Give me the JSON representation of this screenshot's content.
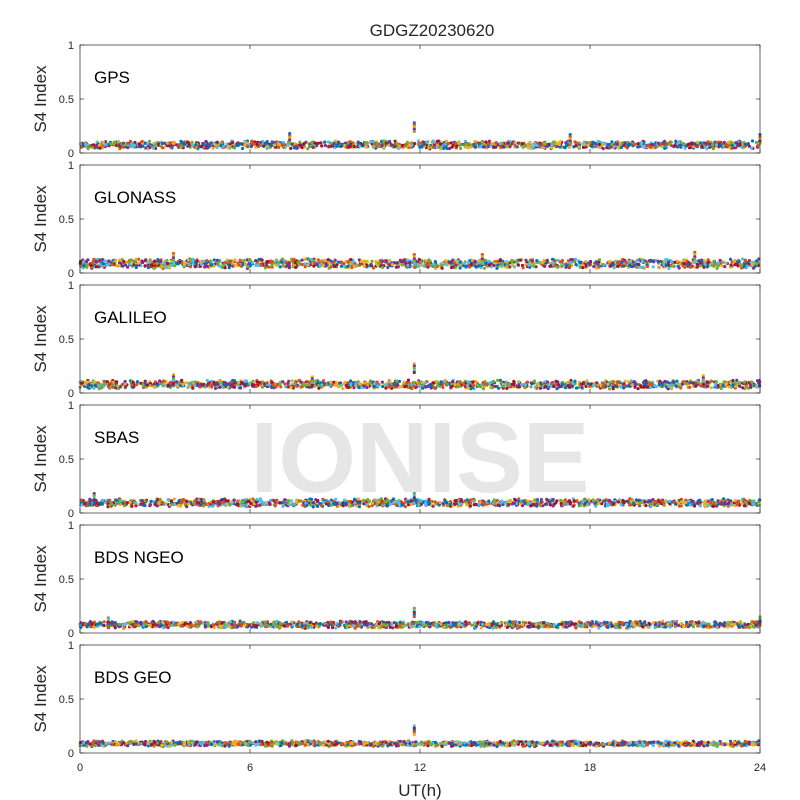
{
  "chart_data": {
    "type": "scatter",
    "title": "GDGZ20230620",
    "xlabel": "UT(h)",
    "ylabel": "S4 Index",
    "xlim": [
      0,
      24
    ],
    "ylim": [
      0,
      1
    ],
    "xticks": [
      0,
      6,
      12,
      18,
      24
    ],
    "xtick_labels": [
      "0",
      "6",
      "12",
      "18",
      "24"
    ],
    "yticks": [
      0,
      0.5,
      1
    ],
    "ytick_labels": [
      "0",
      "0.5",
      "1"
    ],
    "grid": false,
    "watermark": "IONISE",
    "series_colors": [
      "#0072BD",
      "#D95319",
      "#EDB120",
      "#7E2F8E",
      "#77AC30",
      "#4DBEEE",
      "#A2142F"
    ],
    "panels": [
      {
        "label": "GPS",
        "typical_s4_range": [
          0.03,
          0.15
        ],
        "features": [
          {
            "x": 7.4,
            "y": 0.18
          },
          {
            "x": 11.8,
            "y": 0.28
          },
          {
            "x": 17.3,
            "y": 0.17
          },
          {
            "x": 24,
            "y": 0.17
          }
        ]
      },
      {
        "label": "GLONASS",
        "typical_s4_range": [
          0.03,
          0.18
        ],
        "features": [
          {
            "x": 3.3,
            "y": 0.18
          },
          {
            "x": 11.8,
            "y": 0.17
          },
          {
            "x": 14.2,
            "y": 0.17
          },
          {
            "x": 21.7,
            "y": 0.19
          }
        ]
      },
      {
        "label": "GALILEO",
        "typical_s4_range": [
          0.03,
          0.16
        ],
        "features": [
          {
            "x": 3.3,
            "y": 0.17
          },
          {
            "x": 8.2,
            "y": 0.15
          },
          {
            "x": 11.8,
            "y": 0.27
          },
          {
            "x": 22.0,
            "y": 0.16
          }
        ]
      },
      {
        "label": "SBAS",
        "typical_s4_range": [
          0.05,
          0.17
        ],
        "features": [
          {
            "x": 0.5,
            "y": 0.18
          },
          {
            "x": 11.8,
            "y": 0.2
          }
        ]
      },
      {
        "label": "BDS NGEO",
        "typical_s4_range": [
          0.04,
          0.14
        ],
        "features": [
          {
            "x": 1.0,
            "y": 0.14
          },
          {
            "x": 11.8,
            "y": 0.23
          },
          {
            "x": 24,
            "y": 0.15
          }
        ]
      },
      {
        "label": "BDS GEO",
        "typical_s4_range": [
          0.06,
          0.13
        ],
        "features": [
          {
            "x": 11.8,
            "y": 0.25
          }
        ]
      }
    ]
  }
}
